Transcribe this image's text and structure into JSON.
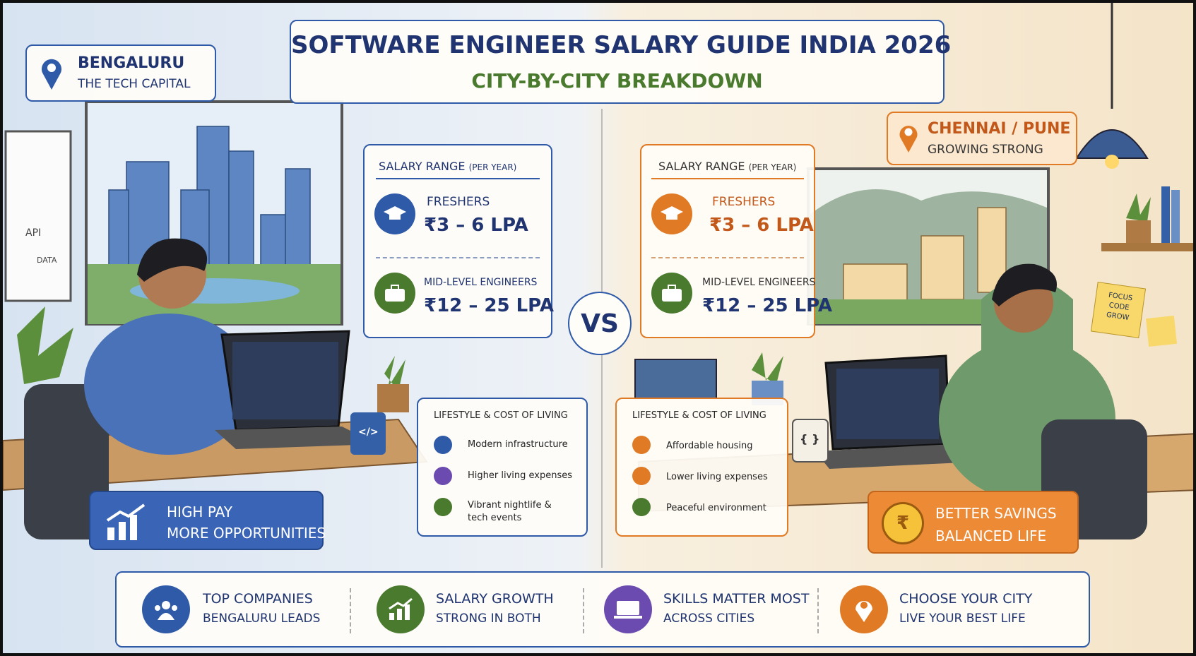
{
  "header": {
    "title": "SOFTWARE ENGINEER SALARY GUIDE INDIA 2026",
    "subtitle": "CITY-BY-CITY BREAKDOWN"
  },
  "bengaluru": {
    "city": "BENGALURU",
    "tagline": "THE TECH CAPITAL",
    "salary": {
      "heading": "SALARY RANGE",
      "note": "(PER YEAR)",
      "freshers": {
        "label": "FRESHERS",
        "range": "₹3 – 6 LPA"
      },
      "mid_level": {
        "label": "MID-LEVEL ENGINEERS",
        "range": "₹12 – 25 LPA"
      }
    },
    "lifestyle": {
      "heading": "LIFESTYLE & COST OF LIVING",
      "items": [
        "Modern infrastructure",
        "Higher living expenses",
        "Vibrant nightlife & tech events"
      ]
    },
    "highlight": [
      "HIGH PAY",
      "MORE OPPORTUNITIES"
    ]
  },
  "vs": "VS",
  "chennai_pune": {
    "city": "CHENNAI / PUNE",
    "tagline": "GROWING STRONG",
    "salary": {
      "heading": "SALARY RANGE",
      "note": "(PER YEAR)",
      "freshers": {
        "label": "FRESHERS",
        "range": "₹3 – 6 LPA"
      },
      "mid_level": {
        "label": "MID-LEVEL ENGINEERS",
        "range": "₹12 – 25 LPA"
      }
    },
    "lifestyle": {
      "heading": "LIFESTYLE & COST OF LIVING",
      "items": [
        "Affordable housing",
        "Lower living expenses",
        "Peaceful environment"
      ]
    },
    "highlight": [
      "BETTER SAVINGS",
      "BALANCED LIFE"
    ]
  },
  "whiteboard": [
    "API",
    "DATA"
  ],
  "sticky_note": [
    "FOCUS",
    "CODE",
    "GROW"
  ],
  "mugs": [
    "</>",
    "{ }"
  ],
  "footer": [
    {
      "title": "TOP COMPANIES",
      "subtitle": "BENGALURU LEADS"
    },
    {
      "title": "SALARY GROWTH",
      "subtitle": "STRONG IN BOTH"
    },
    {
      "title": "SKILLS MATTER MOST",
      "subtitle": "ACROSS CITIES"
    },
    {
      "title": "CHOOSE YOUR CITY",
      "subtitle": "LIVE YOUR BEST LIFE"
    }
  ]
}
